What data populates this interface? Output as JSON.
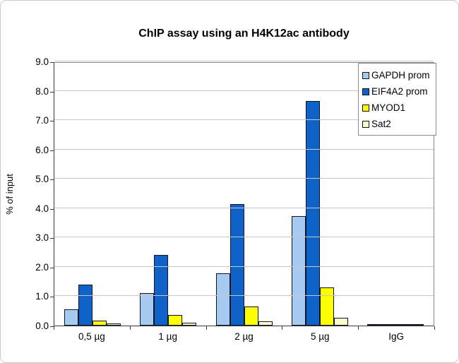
{
  "chart_data": {
    "type": "bar",
    "title": "ChIP assay using an H4K12ac antibody",
    "xlabel": "",
    "ylabel": "% of input",
    "ylim": [
      0,
      9
    ],
    "ytick_step": 1.0,
    "ytick_labels": [
      "0.0",
      "1.0",
      "2.0",
      "3.0",
      "4.0",
      "5.0",
      "6.0",
      "7.0",
      "8.0",
      "9.0"
    ],
    "grid": true,
    "legend_position": "top-right",
    "categories": [
      "0,5 µg",
      "1 µg",
      "2 µg",
      "5 µg",
      "IgG"
    ],
    "series": [
      {
        "name": "GAPDH prom",
        "color": "#a6caf0",
        "values": [
          0.55,
          1.1,
          1.77,
          3.73,
          0.02
        ]
      },
      {
        "name": "EIF4A2 prom",
        "color": "#0f62c8",
        "values": [
          1.4,
          2.4,
          4.15,
          7.65,
          0.02
        ]
      },
      {
        "name": "MYOD1",
        "color": "#ffff00",
        "values": [
          0.18,
          0.35,
          0.65,
          1.3,
          0.02
        ]
      },
      {
        "name": "Sat2",
        "color": "#ffffcc",
        "values": [
          0.08,
          0.1,
          0.15,
          0.27,
          0.02
        ]
      }
    ]
  }
}
